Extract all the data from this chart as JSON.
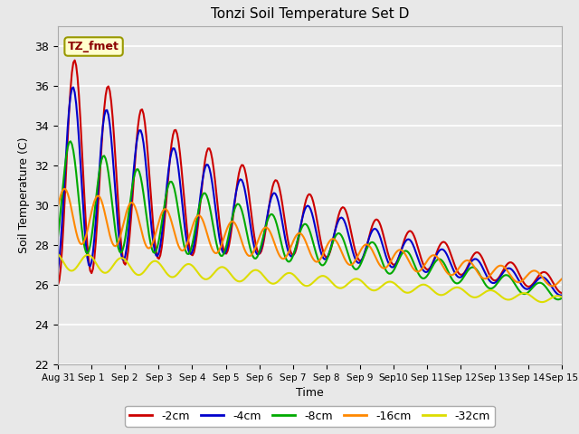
{
  "title": "Tonzi Soil Temperature Set D",
  "xlabel": "Time",
  "ylabel": "Soil Temperature (C)",
  "ylim": [
    22,
    39
  ],
  "yticks": [
    22,
    24,
    26,
    28,
    30,
    32,
    34,
    36,
    38
  ],
  "fig_bg_color": "#e8e8e8",
  "plot_bg_color": "#e8e8e8",
  "legend_entries": [
    "-2cm",
    "-4cm",
    "-8cm",
    "-16cm",
    "-32cm"
  ],
  "legend_colors": [
    "#cc0000",
    "#0000cc",
    "#00aa00",
    "#ff8800",
    "#dddd00"
  ],
  "line_widths": [
    1.5,
    1.5,
    1.5,
    1.5,
    1.5
  ],
  "label_box_text": "TZ_fmet",
  "label_box_facecolor": "#ffffcc",
  "label_box_edgecolor": "#999900",
  "n_points": 360,
  "depth_params": {
    "d2": {
      "base_mean": 32.0,
      "base_amp": 6.0,
      "decay": 0.18,
      "phase": -1.57,
      "mean_decay": 0.4
    },
    "d4": {
      "base_mean": 31.5,
      "base_amp": 5.0,
      "decay": 0.18,
      "phase": -1.27,
      "mean_decay": 0.38
    },
    "d8": {
      "base_mean": 30.5,
      "base_amp": 3.0,
      "decay": 0.15,
      "phase": -0.77,
      "mean_decay": 0.33
    },
    "d16": {
      "base_mean": 29.5,
      "base_amp": 1.4,
      "decay": 0.1,
      "phase": 0.3,
      "mean_decay": 0.22
    },
    "d32": {
      "base_mean": 27.2,
      "base_amp": 0.45,
      "decay": 0.06,
      "phase": 2.2,
      "mean_decay": 0.13
    }
  },
  "x_tick_labels": [
    "Aug 31",
    "Sep 1",
    "Sep 2",
    "Sep 3",
    "Sep 4",
    "Sep 5",
    "Sep 6",
    "Sep 7",
    "Sep 8",
    "Sep 9",
    "Sep10",
    "Sep 11",
    "Sep 12",
    "Sep 13",
    "Sep 14",
    "Sep 15"
  ],
  "x_tick_positions": [
    0,
    1,
    2,
    3,
    4,
    5,
    6,
    7,
    8,
    9,
    10,
    11,
    12,
    13,
    14,
    15
  ]
}
